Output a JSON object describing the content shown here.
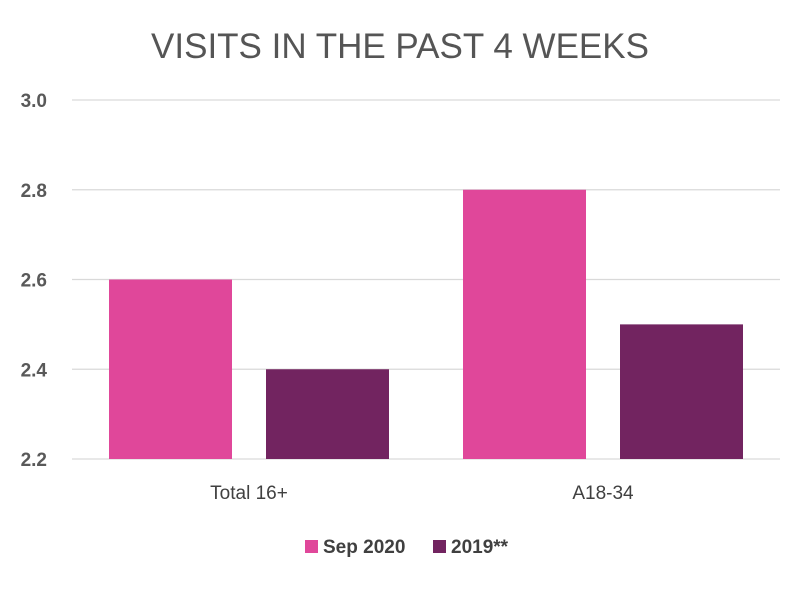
{
  "chart_data": {
    "type": "bar",
    "title": "VISITS IN THE PAST 4 WEEKS",
    "categories": [
      "Total 16+",
      "A18-34"
    ],
    "series": [
      {
        "name": "Sep 2020",
        "values": [
          2.6,
          2.8
        ],
        "color": "#e0479a"
      },
      {
        "name": "2019**",
        "values": [
          2.4,
          2.5
        ],
        "color": "#722460"
      }
    ],
    "ylim": [
      2.2,
      3.0
    ],
    "yticks": [
      "2.2",
      "2.4",
      "2.6",
      "2.8",
      "3.0"
    ],
    "grid": true,
    "legend": "bottom"
  }
}
